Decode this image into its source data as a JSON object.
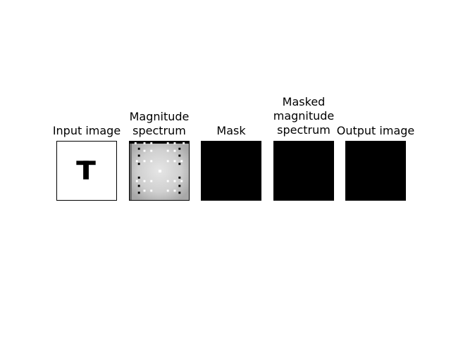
{
  "figure": {
    "panels": [
      {
        "id": "input",
        "title_lines": [
          "Input image"
        ]
      },
      {
        "id": "magnitude",
        "title_lines": [
          "Magnitude",
          "spectrum"
        ]
      },
      {
        "id": "mask",
        "title_lines": [
          "Mask"
        ]
      },
      {
        "id": "masked",
        "title_lines": [
          "Masked",
          "magnitude",
          "spectrum"
        ]
      },
      {
        "id": "output",
        "title_lines": [
          "Output image"
        ]
      }
    ]
  },
  "colors": {
    "background": "#ffffff",
    "frame": "#000000",
    "input_background": "#ffffff",
    "input_glyph": "#000000",
    "spectrum_base": "#cccccc",
    "spectrum_bright": "#ffffff",
    "spectrum_dark": "#000000",
    "black_panel": "#000000"
  }
}
